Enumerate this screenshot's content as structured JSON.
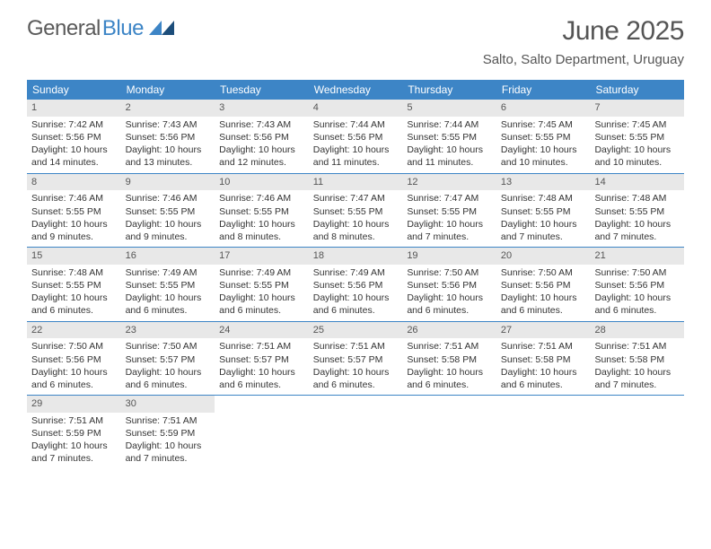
{
  "logo": {
    "text1": "General",
    "text2": "Blue"
  },
  "title": "June 2025",
  "location": "Salto, Salto Department, Uruguay",
  "colors": {
    "header_bg": "#3d85c6",
    "header_fg": "#ffffff",
    "daynum_bg": "#e8e8e8",
    "text": "#333333",
    "logo_gray": "#5a5a5a",
    "logo_blue": "#3d85c6",
    "divider": "#3d85c6"
  },
  "day_names": [
    "Sunday",
    "Monday",
    "Tuesday",
    "Wednesday",
    "Thursday",
    "Friday",
    "Saturday"
  ],
  "weeks": [
    [
      {
        "n": "1",
        "sr": "7:42 AM",
        "ss": "5:56 PM",
        "dl": "10 hours and 14 minutes."
      },
      {
        "n": "2",
        "sr": "7:43 AM",
        "ss": "5:56 PM",
        "dl": "10 hours and 13 minutes."
      },
      {
        "n": "3",
        "sr": "7:43 AM",
        "ss": "5:56 PM",
        "dl": "10 hours and 12 minutes."
      },
      {
        "n": "4",
        "sr": "7:44 AM",
        "ss": "5:56 PM",
        "dl": "10 hours and 11 minutes."
      },
      {
        "n": "5",
        "sr": "7:44 AM",
        "ss": "5:55 PM",
        "dl": "10 hours and 11 minutes."
      },
      {
        "n": "6",
        "sr": "7:45 AM",
        "ss": "5:55 PM",
        "dl": "10 hours and 10 minutes."
      },
      {
        "n": "7",
        "sr": "7:45 AM",
        "ss": "5:55 PM",
        "dl": "10 hours and 10 minutes."
      }
    ],
    [
      {
        "n": "8",
        "sr": "7:46 AM",
        "ss": "5:55 PM",
        "dl": "10 hours and 9 minutes."
      },
      {
        "n": "9",
        "sr": "7:46 AM",
        "ss": "5:55 PM",
        "dl": "10 hours and 9 minutes."
      },
      {
        "n": "10",
        "sr": "7:46 AM",
        "ss": "5:55 PM",
        "dl": "10 hours and 8 minutes."
      },
      {
        "n": "11",
        "sr": "7:47 AM",
        "ss": "5:55 PM",
        "dl": "10 hours and 8 minutes."
      },
      {
        "n": "12",
        "sr": "7:47 AM",
        "ss": "5:55 PM",
        "dl": "10 hours and 7 minutes."
      },
      {
        "n": "13",
        "sr": "7:48 AM",
        "ss": "5:55 PM",
        "dl": "10 hours and 7 minutes."
      },
      {
        "n": "14",
        "sr": "7:48 AM",
        "ss": "5:55 PM",
        "dl": "10 hours and 7 minutes."
      }
    ],
    [
      {
        "n": "15",
        "sr": "7:48 AM",
        "ss": "5:55 PM",
        "dl": "10 hours and 6 minutes."
      },
      {
        "n": "16",
        "sr": "7:49 AM",
        "ss": "5:55 PM",
        "dl": "10 hours and 6 minutes."
      },
      {
        "n": "17",
        "sr": "7:49 AM",
        "ss": "5:55 PM",
        "dl": "10 hours and 6 minutes."
      },
      {
        "n": "18",
        "sr": "7:49 AM",
        "ss": "5:56 PM",
        "dl": "10 hours and 6 minutes."
      },
      {
        "n": "19",
        "sr": "7:50 AM",
        "ss": "5:56 PM",
        "dl": "10 hours and 6 minutes."
      },
      {
        "n": "20",
        "sr": "7:50 AM",
        "ss": "5:56 PM",
        "dl": "10 hours and 6 minutes."
      },
      {
        "n": "21",
        "sr": "7:50 AM",
        "ss": "5:56 PM",
        "dl": "10 hours and 6 minutes."
      }
    ],
    [
      {
        "n": "22",
        "sr": "7:50 AM",
        "ss": "5:56 PM",
        "dl": "10 hours and 6 minutes."
      },
      {
        "n": "23",
        "sr": "7:50 AM",
        "ss": "5:57 PM",
        "dl": "10 hours and 6 minutes."
      },
      {
        "n": "24",
        "sr": "7:51 AM",
        "ss": "5:57 PM",
        "dl": "10 hours and 6 minutes."
      },
      {
        "n": "25",
        "sr": "7:51 AM",
        "ss": "5:57 PM",
        "dl": "10 hours and 6 minutes."
      },
      {
        "n": "26",
        "sr": "7:51 AM",
        "ss": "5:58 PM",
        "dl": "10 hours and 6 minutes."
      },
      {
        "n": "27",
        "sr": "7:51 AM",
        "ss": "5:58 PM",
        "dl": "10 hours and 6 minutes."
      },
      {
        "n": "28",
        "sr": "7:51 AM",
        "ss": "5:58 PM",
        "dl": "10 hours and 7 minutes."
      }
    ],
    [
      {
        "n": "29",
        "sr": "7:51 AM",
        "ss": "5:59 PM",
        "dl": "10 hours and 7 minutes."
      },
      {
        "n": "30",
        "sr": "7:51 AM",
        "ss": "5:59 PM",
        "dl": "10 hours and 7 minutes."
      },
      null,
      null,
      null,
      null,
      null
    ]
  ],
  "labels": {
    "sunrise": "Sunrise: ",
    "sunset": "Sunset: ",
    "daylight": "Daylight: "
  }
}
